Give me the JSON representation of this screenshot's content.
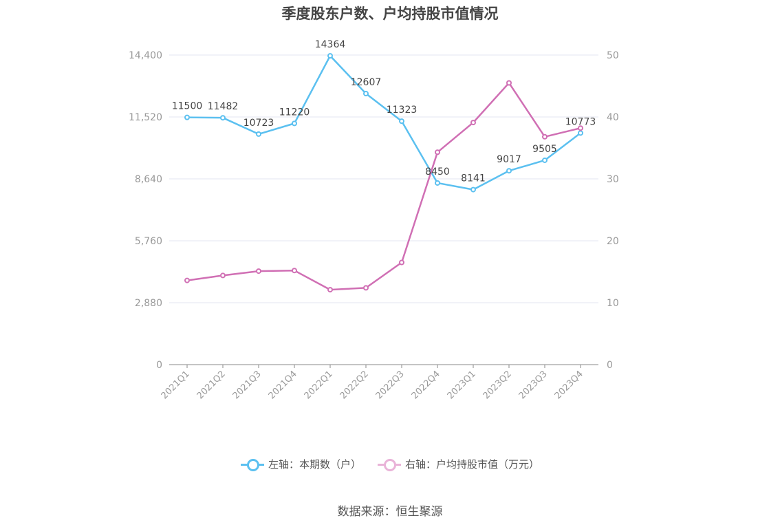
{
  "title": "季度股东户数、户均持股市值情况",
  "legend": {
    "left": "左轴：本期数（户）",
    "right": "右轴：户均持股市值（万元）"
  },
  "source": "数据来源：恒生聚源",
  "colors": {
    "left_series": "#5bc0f0",
    "right_series": "#d06fb4",
    "grid": "#e3e6f0",
    "axis": "#999999"
  },
  "chart_data": {
    "type": "line",
    "title": "季度股东户数、户均持股市值情况",
    "categories": [
      "2021Q1",
      "2021Q2",
      "2021Q3",
      "2021Q4",
      "2022Q1",
      "2022Q2",
      "2022Q3",
      "2022Q4",
      "2023Q1",
      "2023Q2",
      "2023Q3",
      "2023Q4"
    ],
    "left_axis": {
      "ticks": [
        "0",
        "2,880",
        "5,760",
        "8,640",
        "11,520",
        "14,400"
      ],
      "range": [
        0,
        14400
      ]
    },
    "right_axis": {
      "ticks": [
        "0",
        "10",
        "20",
        "30",
        "40",
        "50"
      ],
      "range": [
        0,
        50
      ]
    },
    "grid": true,
    "legend_position": "bottom",
    "series": [
      {
        "name": "左轴：本期数（户）",
        "axis": "left",
        "values": [
          11500,
          11482,
          10723,
          11220,
          14364,
          12607,
          11323,
          8450,
          8141,
          9017,
          9505,
          10773
        ],
        "labels": [
          "11500",
          "11482",
          "10723",
          "11220",
          "14364",
          "12607",
          "11323",
          "8450",
          "8141",
          "9017",
          "9505",
          "10773"
        ]
      },
      {
        "name": "右轴：户均持股市值（万元）",
        "axis": "right",
        "values": [
          13.6,
          14.4,
          15.1,
          15.2,
          12.1,
          12.4,
          16.5,
          34.3,
          39.1,
          45.5,
          36.8,
          38.2
        ]
      }
    ]
  }
}
